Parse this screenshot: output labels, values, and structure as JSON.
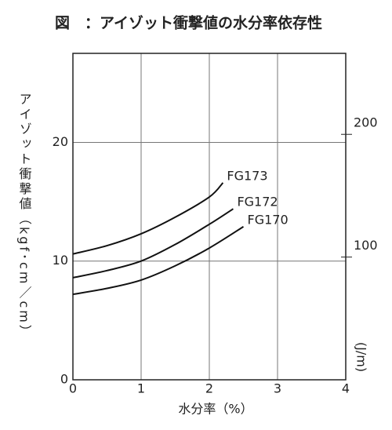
{
  "chart_data": {
    "type": "line",
    "title": "図　：アイゾット衝撃値の水分率依存性",
    "x_label": "水分率（%）",
    "y_label": "アイゾット衝撃値（kgf･cm／cm）",
    "y2_label": "(J/m)",
    "xlim": [
      0,
      4
    ],
    "xticks": [
      0,
      1,
      2,
      3,
      4
    ],
    "ylim": [
      0,
      27.5
    ],
    "yticks": [
      0,
      10,
      20
    ],
    "y2lim": [
      0,
      266
    ],
    "y2ticks": [
      100,
      200
    ],
    "grid": true,
    "series": [
      {
        "name": "FG173",
        "color": "#111111",
        "x": [
          0,
          0.5,
          1,
          1.5,
          2,
          2.2
        ],
        "values": [
          10.6,
          11.3,
          12.3,
          13.7,
          15.4,
          16.6
        ]
      },
      {
        "name": "FG172",
        "color": "#111111",
        "x": [
          0,
          0.5,
          1,
          1.5,
          2,
          2.35
        ],
        "values": [
          8.6,
          9.2,
          10.0,
          11.4,
          13.1,
          14.4
        ]
      },
      {
        "name": "FG170",
        "color": "#111111",
        "x": [
          0,
          0.5,
          1,
          1.5,
          2,
          2.5
        ],
        "values": [
          7.2,
          7.7,
          8.4,
          9.6,
          11.1,
          12.9
        ]
      }
    ]
  }
}
